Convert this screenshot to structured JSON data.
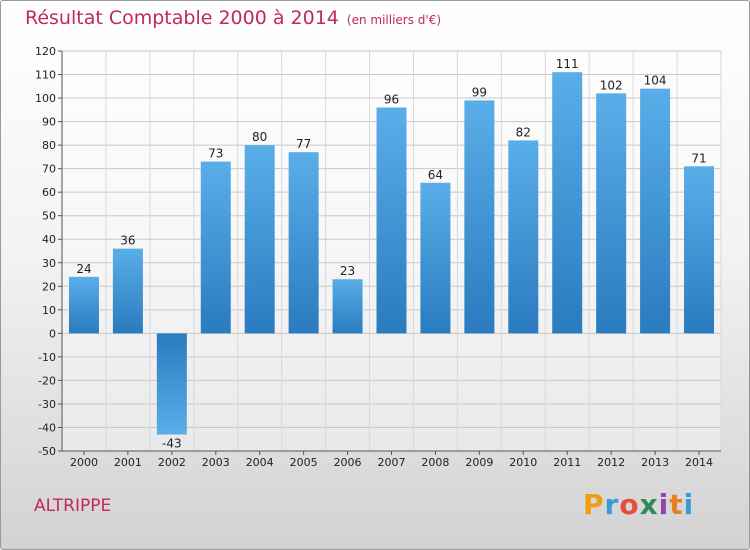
{
  "title": "Résultat Comptable 2000 à 2014",
  "subtitle": "(en milliers d'€)",
  "commune": "ALTRIPPE",
  "logo": {
    "letters": [
      "P",
      "r",
      "o",
      "x",
      "i",
      "t",
      "i"
    ],
    "colors": [
      "#f39c12",
      "#3a9ad9",
      "#e74c3c",
      "#2e8b57",
      "#8e44ad",
      "#e67e22",
      "#3a9ad9"
    ]
  },
  "colors": {
    "bar_top": "#5aaee8",
    "bar_bottom": "#2a7bbf",
    "title": "#c0295a"
  },
  "chart_data": {
    "type": "bar",
    "title": "Résultat Comptable 2000 à 2014",
    "xlabel": "",
    "ylabel": "",
    "ylim": [
      -50,
      120
    ],
    "ytick_step": 10,
    "grid": true,
    "categories": [
      "2000",
      "2001",
      "2002",
      "2003",
      "2004",
      "2005",
      "2006",
      "2007",
      "2008",
      "2009",
      "2010",
      "2011",
      "2012",
      "2013",
      "2014"
    ],
    "values": [
      24,
      36,
      -43,
      73,
      80,
      77,
      23,
      96,
      64,
      99,
      82,
      111,
      102,
      104,
      71
    ]
  }
}
